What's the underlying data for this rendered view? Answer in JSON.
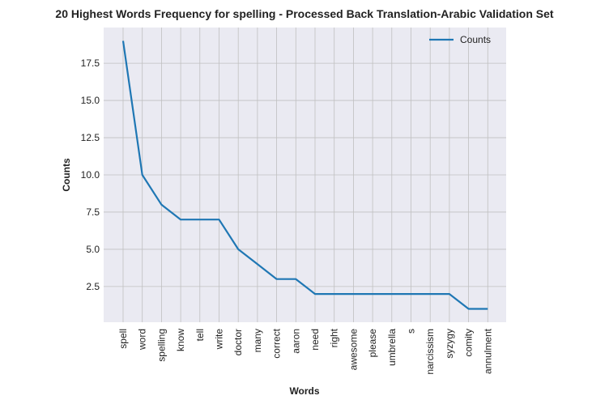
{
  "chart_data": {
    "type": "line",
    "title": "20 Highest Words Frequency for spelling - Processed Back Translation-Arabic Validation Set",
    "xlabel": "Words",
    "ylabel": "Counts",
    "categories": [
      "spell",
      "word",
      "spelling",
      "know",
      "tell",
      "write",
      "doctor",
      "many",
      "correct",
      "aaron",
      "need",
      "right",
      "awesome",
      "please",
      "umbrella",
      "s",
      "narcissism",
      "syzygy",
      "comity",
      "annulment"
    ],
    "series": [
      {
        "name": "Counts",
        "values": [
          19,
          10,
          8,
          7,
          7,
          7,
          5,
          4,
          3,
          3,
          2,
          2,
          2,
          2,
          2,
          2,
          2,
          2,
          1,
          1
        ]
      }
    ],
    "yticks": [
      "2.5",
      "5.0",
      "7.5",
      "10.0",
      "12.5",
      "15.0",
      "17.5"
    ],
    "ylim": [
      0.1,
      19.9
    ],
    "grid": true,
    "legend_position": "upper right",
    "colors": {
      "line": "#1f77b4",
      "background": "#eaeaf2",
      "grid": "#c0c0c0"
    }
  }
}
